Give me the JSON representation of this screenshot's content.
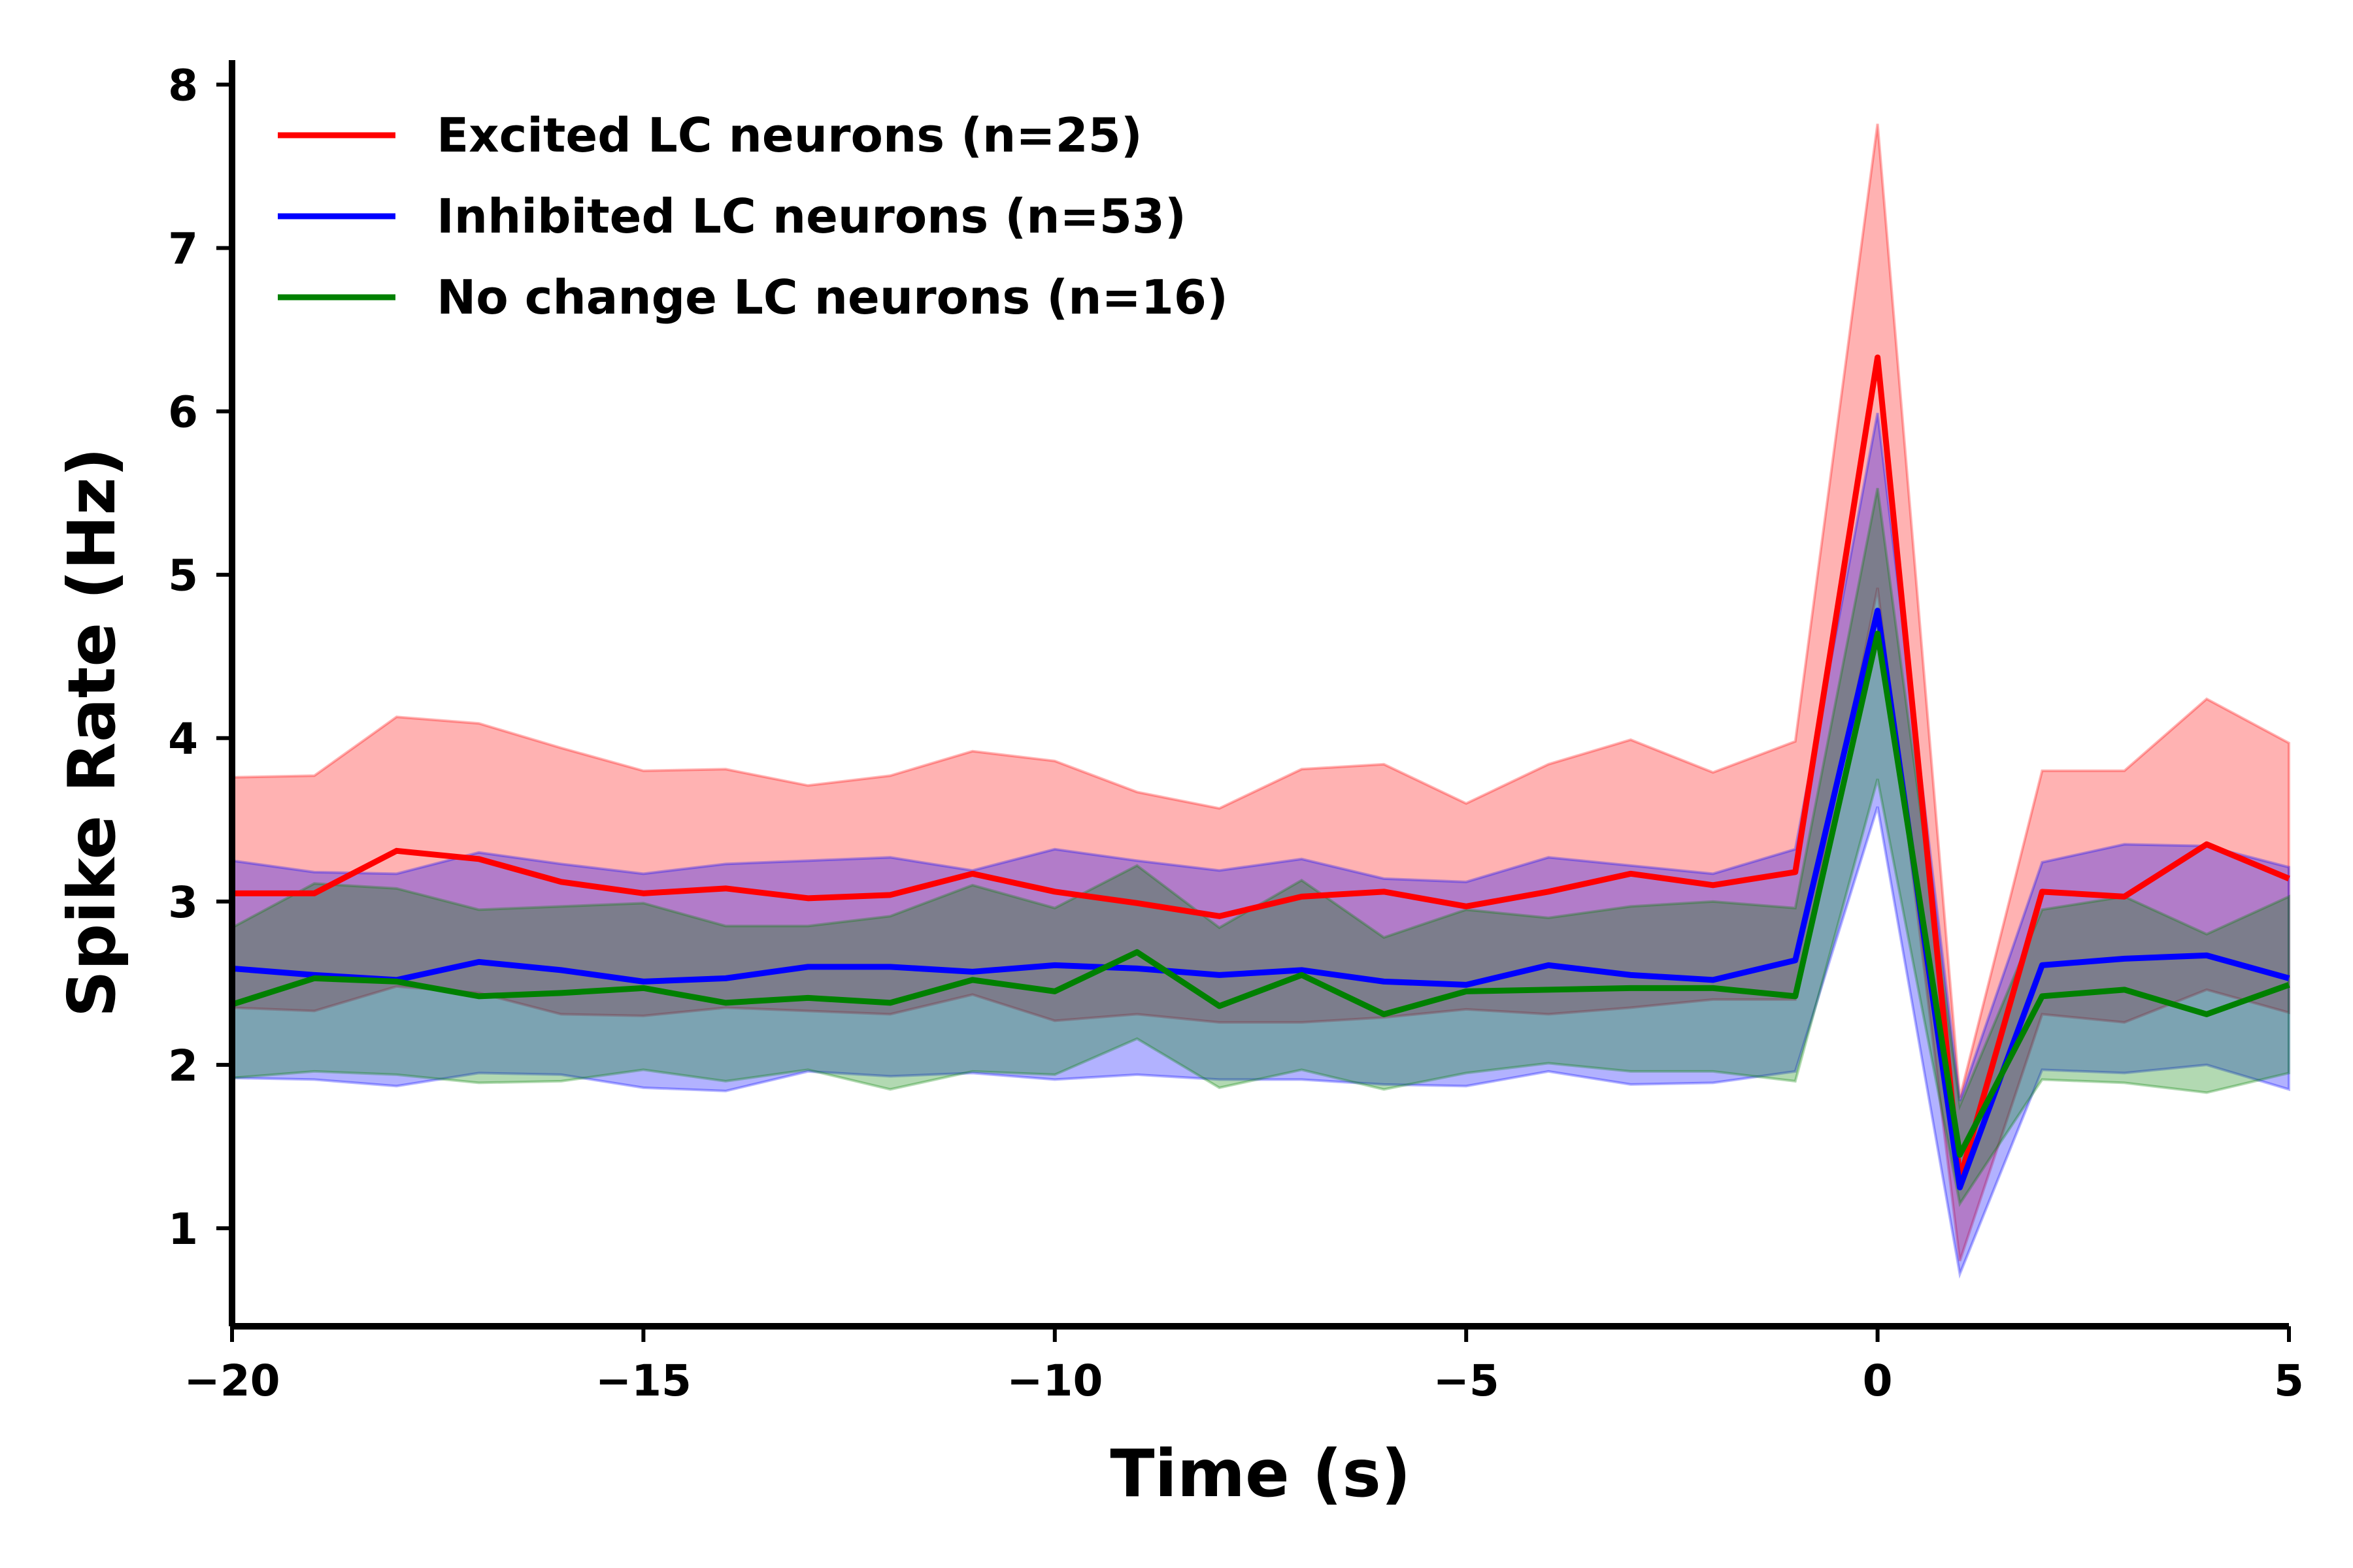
{
  "chart_data": {
    "type": "line",
    "xlabel": "Time (s)",
    "ylabel": "Spike Rate (Hz)",
    "xlim": [
      -20,
      5
    ],
    "ylim": [
      0.4,
      8.15
    ],
    "xticks": [
      -20,
      -15,
      -10,
      -5,
      0,
      5
    ],
    "xtick_labels": [
      "−20",
      "−15",
      "−10",
      "−5",
      "0",
      "5"
    ],
    "yticks": [
      1,
      2,
      3,
      4,
      5,
      6,
      7,
      8
    ],
    "ytick_labels": [
      "1",
      "2",
      "3",
      "4",
      "5",
      "6",
      "7",
      "8"
    ],
    "grid": false,
    "legend_position": "top-left",
    "x": [
      -20,
      -19,
      -18,
      -17,
      -16,
      -15,
      -14,
      -13,
      -12,
      -11,
      -10,
      -9,
      -8,
      -7,
      -6,
      -5,
      -4,
      -3,
      -2,
      -1,
      0,
      1,
      2,
      3,
      4,
      5
    ],
    "series": [
      {
        "name": "Excited LC neurons (n=25)",
        "color": "#ff0000",
        "values": [
          3.05,
          3.05,
          3.31,
          3.26,
          3.12,
          3.05,
          3.08,
          3.02,
          3.04,
          3.17,
          3.06,
          2.99,
          2.91,
          3.03,
          3.06,
          2.97,
          3.06,
          3.17,
          3.1,
          3.18,
          6.33,
          1.3,
          3.06,
          3.03,
          3.35,
          3.14
        ],
        "upper": [
          3.76,
          3.77,
          4.13,
          4.09,
          3.94,
          3.8,
          3.81,
          3.71,
          3.77,
          3.92,
          3.86,
          3.67,
          3.57,
          3.81,
          3.84,
          3.6,
          3.84,
          3.99,
          3.79,
          3.98,
          7.76,
          1.8,
          3.8,
          3.8,
          4.24,
          3.97
        ],
        "lower": [
          2.35,
          2.33,
          2.48,
          2.44,
          2.31,
          2.3,
          2.35,
          2.33,
          2.31,
          2.43,
          2.27,
          2.31,
          2.26,
          2.26,
          2.29,
          2.34,
          2.31,
          2.35,
          2.4,
          2.4,
          4.92,
          0.8,
          2.31,
          2.26,
          2.46,
          2.32
        ],
        "band_color": "#ff0000"
      },
      {
        "name": "Inhibited LC neurons (n=53)",
        "color": "#0000ff",
        "values": [
          2.59,
          2.55,
          2.52,
          2.63,
          2.58,
          2.51,
          2.53,
          2.6,
          2.6,
          2.57,
          2.61,
          2.59,
          2.55,
          2.58,
          2.51,
          2.49,
          2.61,
          2.55,
          2.52,
          2.64,
          4.78,
          1.25,
          2.61,
          2.65,
          2.67,
          2.53
        ],
        "upper": [
          3.25,
          3.18,
          3.17,
          3.3,
          3.23,
          3.17,
          3.23,
          3.25,
          3.27,
          3.19,
          3.32,
          3.25,
          3.19,
          3.26,
          3.14,
          3.12,
          3.27,
          3.22,
          3.17,
          3.32,
          5.99,
          1.78,
          3.24,
          3.35,
          3.34,
          3.21
        ],
        "lower": [
          1.92,
          1.91,
          1.87,
          1.95,
          1.94,
          1.86,
          1.84,
          1.96,
          1.93,
          1.95,
          1.91,
          1.94,
          1.91,
          1.91,
          1.88,
          1.87,
          1.96,
          1.88,
          1.89,
          1.96,
          3.58,
          0.72,
          1.97,
          1.95,
          2.0,
          1.85
        ],
        "band_color": "#0000ff"
      },
      {
        "name": "No change LC neurons (n=16)",
        "color": "#008000",
        "values": [
          2.37,
          2.53,
          2.51,
          2.42,
          2.44,
          2.47,
          2.38,
          2.41,
          2.38,
          2.52,
          2.45,
          2.69,
          2.36,
          2.55,
          2.31,
          2.45,
          2.46,
          2.47,
          2.47,
          2.42,
          4.64,
          1.45,
          2.42,
          2.46,
          2.31,
          2.49
        ],
        "upper": [
          2.84,
          3.11,
          3.08,
          2.95,
          2.97,
          2.99,
          2.85,
          2.85,
          2.91,
          3.1,
          2.96,
          3.22,
          2.84,
          3.13,
          2.78,
          2.95,
          2.9,
          2.97,
          3.0,
          2.96,
          5.53,
          1.75,
          2.95,
          3.03,
          2.8,
          3.03
        ],
        "lower": [
          1.92,
          1.96,
          1.94,
          1.89,
          1.9,
          1.97,
          1.9,
          1.97,
          1.85,
          1.96,
          1.94,
          2.16,
          1.86,
          1.97,
          1.85,
          1.95,
          2.01,
          1.96,
          1.96,
          1.9,
          3.75,
          1.15,
          1.91,
          1.89,
          1.83,
          1.95
        ],
        "band_color": "#008000"
      }
    ]
  }
}
